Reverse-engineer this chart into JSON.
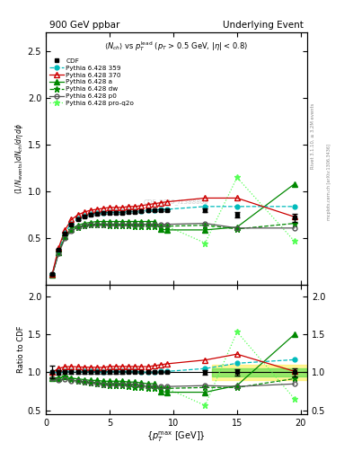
{
  "title_left": "900 GeV ppbar",
  "title_right": "Underlying Event",
  "ylabel_main": "$(1/N_{\\mathrm{events}}) dN_{ch}/d\\eta\\, d\\phi$",
  "ylabel_ratio": "Ratio to CDF",
  "xlabel": "$\\{p_T^{\\mathrm{max}}$ [GeV]$\\}$",
  "watermark": "CDF_2015_I1388868",
  "right_label_top": "Rivet 3.1.10, ≥ 3.2M events",
  "right_label_bot": "mcplots.cern.ch [arXiv:1306.3436]",
  "xdata": [
    0.5,
    1.0,
    1.5,
    2.0,
    2.5,
    3.0,
    3.5,
    4.0,
    4.5,
    5.0,
    5.5,
    6.0,
    6.5,
    7.0,
    7.5,
    8.0,
    8.5,
    9.0,
    9.5,
    12.5,
    15.0,
    19.5
  ],
  "CDF_y": [
    0.12,
    0.38,
    0.55,
    0.65,
    0.7,
    0.73,
    0.75,
    0.76,
    0.77,
    0.77,
    0.77,
    0.77,
    0.78,
    0.78,
    0.79,
    0.8,
    0.8,
    0.8,
    0.8,
    0.8,
    0.75,
    0.72
  ],
  "CDF_yerr": [
    0.01,
    0.01,
    0.01,
    0.01,
    0.01,
    0.01,
    0.01,
    0.01,
    0.01,
    0.01,
    0.01,
    0.01,
    0.01,
    0.01,
    0.01,
    0.01,
    0.01,
    0.01,
    0.01,
    0.02,
    0.03,
    0.04
  ],
  "p359_y": [
    0.12,
    0.38,
    0.56,
    0.66,
    0.71,
    0.74,
    0.76,
    0.77,
    0.77,
    0.78,
    0.78,
    0.78,
    0.79,
    0.79,
    0.79,
    0.8,
    0.8,
    0.81,
    0.81,
    0.84,
    0.84,
    0.84
  ],
  "p370_y": [
    0.12,
    0.4,
    0.59,
    0.7,
    0.75,
    0.78,
    0.8,
    0.81,
    0.82,
    0.83,
    0.83,
    0.83,
    0.84,
    0.84,
    0.85,
    0.86,
    0.87,
    0.88,
    0.89,
    0.93,
    0.93,
    0.73
  ],
  "pa_y": [
    0.11,
    0.35,
    0.52,
    0.6,
    0.64,
    0.66,
    0.67,
    0.68,
    0.68,
    0.68,
    0.68,
    0.68,
    0.68,
    0.68,
    0.68,
    0.68,
    0.68,
    0.6,
    0.59,
    0.59,
    0.62,
    1.08
  ],
  "pdw_y": [
    0.11,
    0.35,
    0.52,
    0.59,
    0.62,
    0.64,
    0.65,
    0.65,
    0.65,
    0.64,
    0.64,
    0.64,
    0.64,
    0.63,
    0.63,
    0.63,
    0.63,
    0.63,
    0.63,
    0.64,
    0.6,
    0.66
  ],
  "pp0_y": [
    0.11,
    0.34,
    0.5,
    0.58,
    0.62,
    0.64,
    0.65,
    0.65,
    0.65,
    0.65,
    0.65,
    0.65,
    0.65,
    0.65,
    0.65,
    0.65,
    0.65,
    0.65,
    0.65,
    0.66,
    0.61,
    0.61
  ],
  "pproq2o_y": [
    0.11,
    0.35,
    0.52,
    0.59,
    0.62,
    0.64,
    0.65,
    0.65,
    0.65,
    0.64,
    0.64,
    0.64,
    0.64,
    0.63,
    0.63,
    0.63,
    0.63,
    0.63,
    0.63,
    0.45,
    1.15,
    0.47
  ],
  "color_CDF": "#000000",
  "color_p359": "#00bbbb",
  "color_p370": "#cc0000",
  "color_pa": "#008800",
  "color_pdw": "#008800",
  "color_pp0": "#555555",
  "color_pproq2o": "#55ff55",
  "ylim_main": [
    0.0,
    2.7
  ],
  "ylim_ratio": [
    0.45,
    2.15
  ],
  "xlim": [
    0.0,
    20.5
  ],
  "yticks_main": [
    0.5,
    1.0,
    1.5,
    2.0,
    2.5
  ],
  "yticks_ratio": [
    0.5,
    1.0,
    1.5,
    2.0
  ],
  "xticks": [
    0,
    5,
    10,
    15,
    20
  ]
}
